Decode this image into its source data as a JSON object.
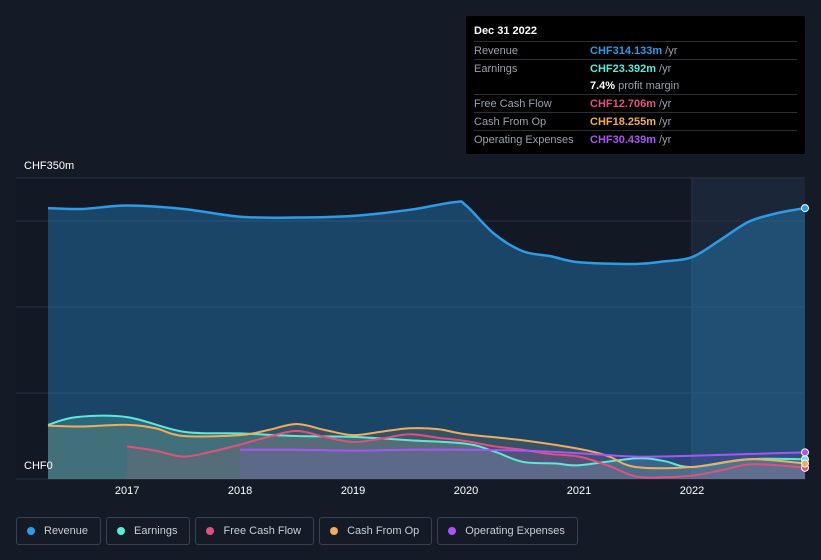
{
  "tooltip": {
    "date": "Dec 31 2022",
    "rows": [
      {
        "label": "Revenue",
        "value": "CHF314.133m",
        "unit": "/yr",
        "color": "#2e9be6"
      },
      {
        "label": "Earnings",
        "value": "CHF23.392m",
        "unit": "/yr",
        "color": "#5ee8d6"
      },
      {
        "label": "",
        "value": "7.4%",
        "unit": "profit margin",
        "color": "#ffffff"
      },
      {
        "label": "Free Cash Flow",
        "value": "CHF12.706m",
        "unit": "/yr",
        "color": "#e0527e"
      },
      {
        "label": "Cash From Op",
        "value": "CHF18.255m",
        "unit": "/yr",
        "color": "#f0ad5c"
      },
      {
        "label": "Operating Expenses",
        "value": "CHF30.439m",
        "unit": "/yr",
        "color": "#a855f7"
      }
    ]
  },
  "axis": {
    "y_top_label": "CHF350m",
    "y_bottom_label": "CHF0"
  },
  "legend": [
    {
      "label": "Revenue",
      "color": "#2e9be6"
    },
    {
      "label": "Earnings",
      "color": "#5ee8d6"
    },
    {
      "label": "Free Cash Flow",
      "color": "#e0527e"
    },
    {
      "label": "Cash From Op",
      "color": "#f0ad5c"
    },
    {
      "label": "Operating Expenses",
      "color": "#a855f7"
    }
  ],
  "chart_data": {
    "type": "line",
    "ylim": [
      0,
      350
    ],
    "xlim": [
      2016.3,
      2023.0
    ],
    "x_ticks": [
      2017,
      2018,
      2019,
      2020,
      2021,
      2022
    ],
    "x_tick_labels": [
      "2017",
      "2018",
      "2019",
      "2020",
      "2021",
      "2022"
    ],
    "grid": true,
    "highlight_start": 2022.0,
    "series": [
      {
        "name": "Revenue",
        "color": "#2e9be6",
        "fill": true,
        "x": [
          2016.3,
          2016.6,
          2017.0,
          2017.5,
          2018.0,
          2018.5,
          2019.0,
          2019.5,
          2019.9,
          2020.0,
          2020.25,
          2020.5,
          2020.75,
          2021.0,
          2021.5,
          2021.75,
          2022.0,
          2022.25,
          2022.5,
          2022.75,
          2023.0
        ],
        "values": [
          315,
          314,
          318,
          314,
          305,
          304,
          306,
          313,
          322,
          318,
          285,
          265,
          259,
          252,
          250,
          253,
          258,
          278,
          299,
          309,
          315
        ]
      },
      {
        "name": "Earnings",
        "color": "#5ee8d6",
        "fill": true,
        "x": [
          2016.3,
          2016.55,
          2017.0,
          2017.5,
          2018.0,
          2018.5,
          2019.0,
          2019.5,
          2020.0,
          2020.25,
          2020.5,
          2020.8,
          2021.0,
          2021.5,
          2021.75,
          2022.0,
          2022.5,
          2023.0
        ],
        "values": [
          63,
          72,
          72,
          55,
          53,
          50,
          49,
          45,
          41,
          32,
          20,
          18,
          16,
          24,
          21,
          14,
          23,
          23
        ]
      },
      {
        "name": "Free Cash Flow",
        "color": "#e0527e",
        "fill": true,
        "x": [
          2017.0,
          2017.25,
          2017.5,
          2017.75,
          2018.0,
          2018.25,
          2018.5,
          2018.75,
          2019.0,
          2019.25,
          2019.5,
          2019.75,
          2020.0,
          2020.25,
          2020.5,
          2020.75,
          2021.0,
          2021.25,
          2021.5,
          2021.75,
          2022.0,
          2022.25,
          2022.5,
          2022.75,
          2023.0
        ],
        "values": [
          38,
          33,
          26,
          32,
          40,
          49,
          56,
          49,
          43,
          47,
          52,
          48,
          44,
          38,
          34,
          29,
          26,
          16,
          3,
          2,
          4,
          10,
          17,
          16,
          13
        ]
      },
      {
        "name": "Cash From Op",
        "color": "#f0ad5c",
        "fill": true,
        "x": [
          2016.3,
          2016.6,
          2017.0,
          2017.25,
          2017.5,
          2018.0,
          2018.25,
          2018.5,
          2018.75,
          2019.0,
          2019.25,
          2019.5,
          2019.75,
          2020.0,
          2020.5,
          2021.0,
          2021.25,
          2021.5,
          2022.0,
          2022.5,
          2023.0
        ],
        "values": [
          62,
          61,
          63,
          59,
          50,
          51,
          57,
          64,
          57,
          51,
          55,
          59,
          58,
          52,
          45,
          35,
          27,
          14,
          14,
          23,
          18
        ]
      },
      {
        "name": "Operating Expenses",
        "color": "#a855f7",
        "fill": true,
        "x": [
          2018.0,
          2018.5,
          2019.0,
          2019.5,
          2020.0,
          2020.5,
          2021.0,
          2021.5,
          2022.0,
          2022.5,
          2023.0
        ],
        "values": [
          34,
          34,
          33,
          34,
          34,
          33,
          30,
          26,
          27,
          29,
          31
        ]
      }
    ]
  }
}
